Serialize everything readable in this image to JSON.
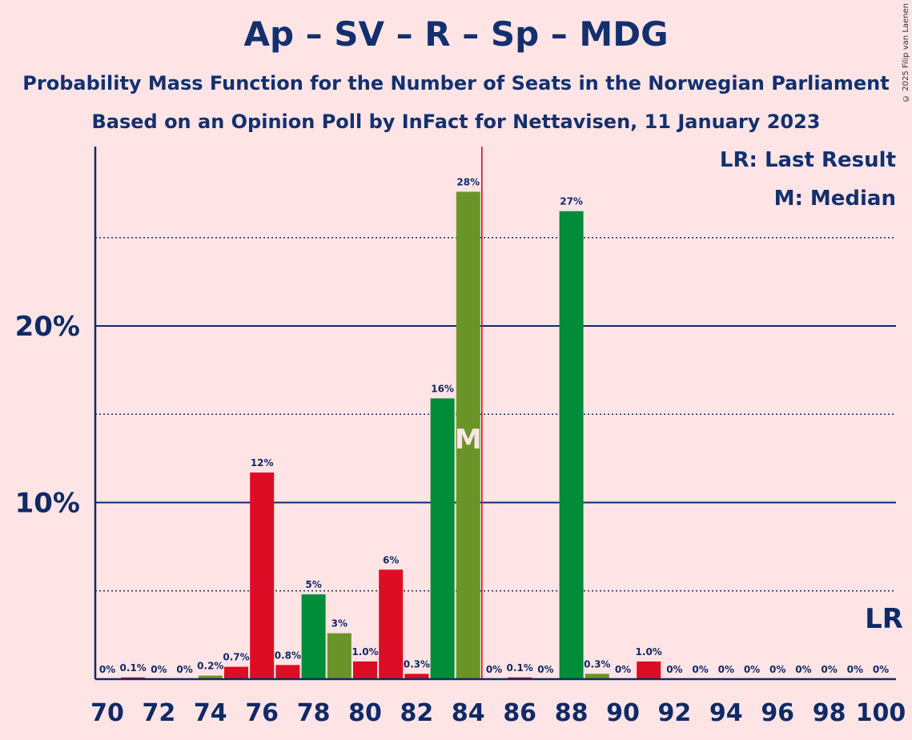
{
  "title": "Ap – SV – R – Sp – MDG",
  "subtitle1": "Probability Mass Function for the Number of Seats in the Norwegian Parliament",
  "subtitle2": "Based on an Opinion Poll by InFact for Nettavisen, 11 January 2023",
  "copyright": "© 2025 Filip van Laenen",
  "legend": {
    "last_result": "LR: Last Result",
    "median": "M: Median"
  },
  "colors": {
    "red": "#DC0D24",
    "green": "#008C38",
    "olive": "#6B9428",
    "axis": "#0F2A66",
    "median_line": "#DC0D24"
  },
  "chart_data": {
    "type": "bar",
    "xlim": [
      70,
      100
    ],
    "ylim": [
      0,
      30
    ],
    "ytick_labels": [
      {
        "value": 10,
        "label": "10%"
      },
      {
        "value": 20,
        "label": "20%"
      }
    ],
    "major_gridlines": [
      10,
      20
    ],
    "minor_gridlines": [
      5,
      15,
      25
    ],
    "xtick_labels": [
      "70",
      "72",
      "74",
      "76",
      "78",
      "80",
      "82",
      "84",
      "86",
      "88",
      "90",
      "92",
      "94",
      "96",
      "98",
      "100"
    ],
    "median_seat": 84,
    "median_marker": "M",
    "last_result_marker": "LR",
    "bars": [
      {
        "x": 70,
        "value": 0,
        "label": "0%",
        "color": "red"
      },
      {
        "x": 71,
        "value": 0.1,
        "label": "0.1%",
        "color": "red"
      },
      {
        "x": 72,
        "value": 0,
        "label": "0%",
        "color": "red"
      },
      {
        "x": 73,
        "value": 0,
        "label": "0%",
        "color": "red"
      },
      {
        "x": 74,
        "value": 0.2,
        "label": "0.2%",
        "color": "olive"
      },
      {
        "x": 75,
        "value": 0.7,
        "label": "0.7%",
        "color": "red"
      },
      {
        "x": 76,
        "value": 11.7,
        "label": "12%",
        "color": "red"
      },
      {
        "x": 77,
        "value": 0.8,
        "label": "0.8%",
        "color": "red"
      },
      {
        "x": 78,
        "value": 4.8,
        "label": "5%",
        "color": "green"
      },
      {
        "x": 79,
        "value": 2.6,
        "label": "3%",
        "color": "olive"
      },
      {
        "x": 80,
        "value": 1.0,
        "label": "1.0%",
        "color": "red"
      },
      {
        "x": 81,
        "value": 6.2,
        "label": "6%",
        "color": "red"
      },
      {
        "x": 82,
        "value": 0.3,
        "label": "0.3%",
        "color": "red"
      },
      {
        "x": 83,
        "value": 15.9,
        "label": "16%",
        "color": "green"
      },
      {
        "x": 84,
        "value": 27.6,
        "label": "28%",
        "color": "olive"
      },
      {
        "x": 85,
        "value": 0,
        "label": "0%",
        "color": "red"
      },
      {
        "x": 86,
        "value": 0.1,
        "label": "0.1%",
        "color": "red"
      },
      {
        "x": 87,
        "value": 0,
        "label": "0%",
        "color": "red"
      },
      {
        "x": 88,
        "value": 26.5,
        "label": "27%",
        "color": "green"
      },
      {
        "x": 89,
        "value": 0.3,
        "label": "0.3%",
        "color": "olive"
      },
      {
        "x": 90,
        "value": 0,
        "label": "0%",
        "color": "red"
      },
      {
        "x": 91,
        "value": 1.0,
        "label": "1.0%",
        "color": "red"
      },
      {
        "x": 92,
        "value": 0,
        "label": "0%",
        "color": "red"
      },
      {
        "x": 93,
        "value": 0,
        "label": "0%",
        "color": "red"
      },
      {
        "x": 94,
        "value": 0,
        "label": "0%",
        "color": "red"
      },
      {
        "x": 95,
        "value": 0,
        "label": "0%",
        "color": "red"
      },
      {
        "x": 96,
        "value": 0,
        "label": "0%",
        "color": "red"
      },
      {
        "x": 97,
        "value": 0,
        "label": "0%",
        "color": "red"
      },
      {
        "x": 98,
        "value": 0,
        "label": "0%",
        "color": "red"
      },
      {
        "x": 99,
        "value": 0,
        "label": "0%",
        "color": "red"
      },
      {
        "x": 100,
        "value": 0,
        "label": "0%",
        "color": "red"
      }
    ]
  }
}
